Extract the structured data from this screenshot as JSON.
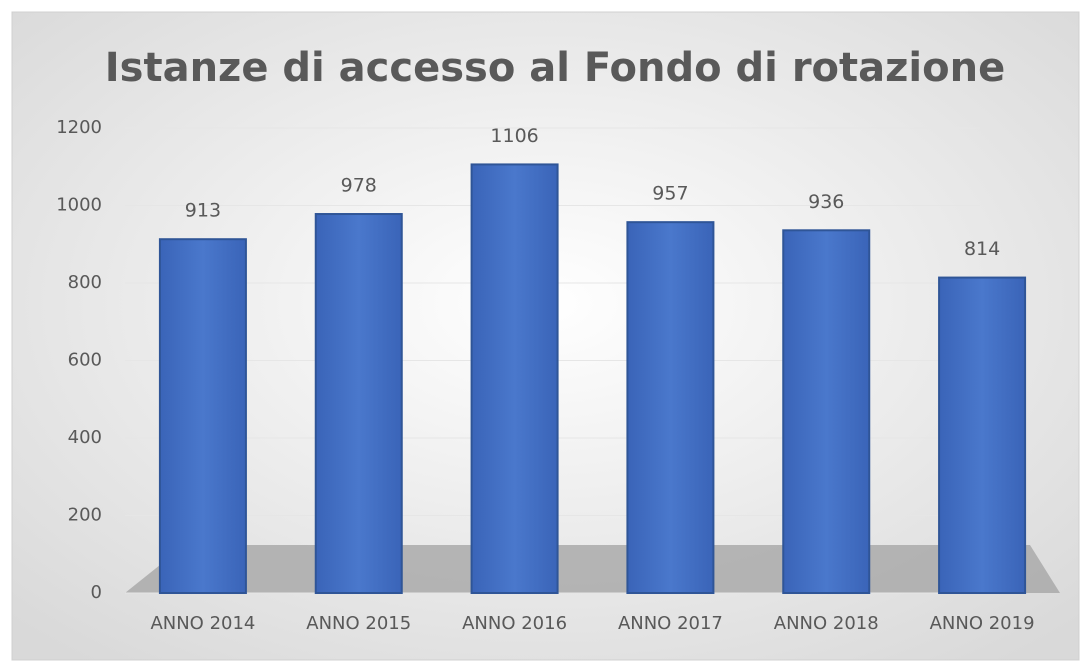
{
  "chart_data": {
    "type": "bar",
    "title": "Istanze di accesso al Fondo di rotazione",
    "categories": [
      "ANNO 2014",
      "ANNO 2015",
      "ANNO 2016",
      "ANNO 2017",
      "ANNO 2018",
      "ANNO 2019"
    ],
    "values": [
      913,
      978,
      1106,
      957,
      936,
      814
    ],
    "color": "#4472c4",
    "ylim": [
      0,
      1200
    ],
    "yticks": [
      0,
      200,
      400,
      600,
      800,
      1000,
      1200
    ],
    "grid": true
  }
}
